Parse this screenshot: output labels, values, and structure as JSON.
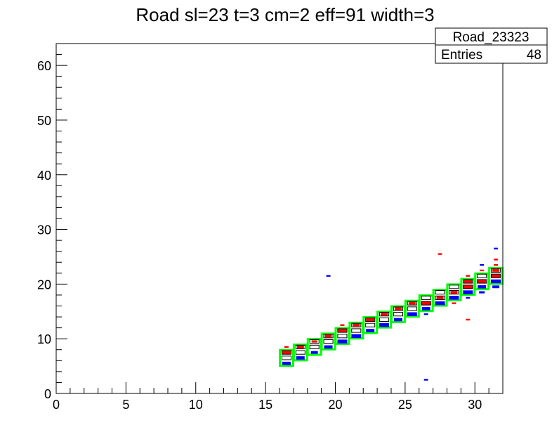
{
  "chart_data": {
    "type": "heatmap",
    "title": "Road sl=23 t=3 cm=2 eff=91 width=3",
    "xlim": [
      0,
      32
    ],
    "ylim": [
      0,
      64
    ],
    "x_ticks": [
      "0",
      "5",
      "10",
      "15",
      "20",
      "25",
      "30"
    ],
    "y_ticks": [
      "0",
      "10",
      "20",
      "30",
      "40",
      "50",
      "60"
    ],
    "x_tick_values": [
      0,
      5,
      10,
      15,
      20,
      25,
      30
    ],
    "y_tick_values": [
      0,
      10,
      20,
      30,
      40,
      50,
      60
    ],
    "grid": false,
    "stats_box": {
      "name": "Road_23323",
      "entries_label": "Entries",
      "entries_value": "48"
    },
    "colors": {
      "road": "#00ff00",
      "layer_a": "#0000ff",
      "layer_b": "#ff0000",
      "box": "#000000"
    },
    "road_cells": [
      {
        "x": 16,
        "y": 5
      },
      {
        "x": 17,
        "y": 6
      },
      {
        "x": 18,
        "y": 7
      },
      {
        "x": 19,
        "y": 8
      },
      {
        "x": 20,
        "y": 9
      },
      {
        "x": 21,
        "y": 10
      },
      {
        "x": 22,
        "y": 11
      },
      {
        "x": 23,
        "y": 12
      },
      {
        "x": 24,
        "y": 13
      },
      {
        "x": 25,
        "y": 14
      },
      {
        "x": 26,
        "y": 15
      },
      {
        "x": 27,
        "y": 16
      },
      {
        "x": 28,
        "y": 17
      },
      {
        "x": 29,
        "y": 18
      },
      {
        "x": 30,
        "y": 19
      },
      {
        "x": 31,
        "y": 20
      }
    ],
    "box_cells": [
      {
        "x": 16,
        "y": 6
      },
      {
        "x": 16,
        "y": 7
      },
      {
        "x": 17,
        "y": 7
      },
      {
        "x": 17,
        "y": 8
      },
      {
        "x": 18,
        "y": 8
      },
      {
        "x": 18,
        "y": 9
      },
      {
        "x": 19,
        "y": 9
      },
      {
        "x": 19,
        "y": 10
      },
      {
        "x": 20,
        "y": 10
      },
      {
        "x": 20,
        "y": 11
      },
      {
        "x": 21,
        "y": 11
      },
      {
        "x": 21,
        "y": 12
      },
      {
        "x": 22,
        "y": 12
      },
      {
        "x": 22,
        "y": 13
      },
      {
        "x": 23,
        "y": 13
      },
      {
        "x": 23,
        "y": 14
      },
      {
        "x": 24,
        "y": 14
      },
      {
        "x": 24,
        "y": 15
      },
      {
        "x": 25,
        "y": 15
      },
      {
        "x": 25,
        "y": 16
      },
      {
        "x": 26,
        "y": 16
      },
      {
        "x": 26,
        "y": 17
      },
      {
        "x": 27,
        "y": 17
      },
      {
        "x": 27,
        "y": 18
      },
      {
        "x": 28,
        "y": 18
      },
      {
        "x": 28,
        "y": 19
      },
      {
        "x": 29,
        "y": 19
      },
      {
        "x": 29,
        "y": 20
      },
      {
        "x": 30,
        "y": 20
      },
      {
        "x": 30,
        "y": 21
      },
      {
        "x": 31,
        "y": 21
      },
      {
        "x": 31,
        "y": 22
      }
    ],
    "blue_bins": [
      {
        "x": 16,
        "y": 5,
        "w": 0.6
      },
      {
        "x": 17,
        "y": 6,
        "w": 0.6
      },
      {
        "x": 18,
        "y": 7,
        "w": 0.5
      },
      {
        "x": 19,
        "y": 8,
        "w": 0.6
      },
      {
        "x": 20,
        "y": 9,
        "w": 0.7
      },
      {
        "x": 21,
        "y": 10,
        "w": 0.7
      },
      {
        "x": 22,
        "y": 11,
        "w": 0.6
      },
      {
        "x": 23,
        "y": 12,
        "w": 0.7
      },
      {
        "x": 24,
        "y": 13,
        "w": 0.6
      },
      {
        "x": 25,
        "y": 14,
        "w": 0.7
      },
      {
        "x": 26,
        "y": 15,
        "w": 0.6
      },
      {
        "x": 27,
        "y": 16,
        "w": 0.7
      },
      {
        "x": 28,
        "y": 17,
        "w": 0.7
      },
      {
        "x": 29,
        "y": 18,
        "w": 0.7
      },
      {
        "x": 30,
        "y": 19,
        "w": 0.6
      },
      {
        "x": 31,
        "y": 20,
        "w": 0.7
      },
      {
        "x": 19,
        "y": 21,
        "w": 0.3
      },
      {
        "x": 26,
        "y": 2,
        "w": 0.3
      },
      {
        "x": 30,
        "y": 23,
        "w": 0.3
      },
      {
        "x": 31,
        "y": 26,
        "w": 0.3
      },
      {
        "x": 29,
        "y": 17,
        "w": 0.3
      },
      {
        "x": 30,
        "y": 18,
        "w": 0.4
      },
      {
        "x": 31,
        "y": 19,
        "w": 0.5
      },
      {
        "x": 26,
        "y": 14,
        "w": 0.3
      }
    ],
    "red_bins": [
      {
        "x": 16,
        "y": 7,
        "w": 0.6
      },
      {
        "x": 17,
        "y": 8,
        "w": 0.5
      },
      {
        "x": 18,
        "y": 9,
        "w": 0.4
      },
      {
        "x": 19,
        "y": 10,
        "w": 0.5
      },
      {
        "x": 20,
        "y": 11,
        "w": 0.6
      },
      {
        "x": 21,
        "y": 12,
        "w": 0.5
      },
      {
        "x": 22,
        "y": 13,
        "w": 0.6
      },
      {
        "x": 23,
        "y": 14,
        "w": 0.5
      },
      {
        "x": 24,
        "y": 15,
        "w": 0.5
      },
      {
        "x": 25,
        "y": 16,
        "w": 0.5
      },
      {
        "x": 26,
        "y": 16,
        "w": 0.7
      },
      {
        "x": 27,
        "y": 17,
        "w": 0.5
      },
      {
        "x": 28,
        "y": 18,
        "w": 0.5
      },
      {
        "x": 29,
        "y": 19,
        "w": 0.7
      },
      {
        "x": 29,
        "y": 20,
        "w": 0.6
      },
      {
        "x": 30,
        "y": 20,
        "w": 0.6
      },
      {
        "x": 31,
        "y": 21,
        "w": 0.6
      },
      {
        "x": 31,
        "y": 22,
        "w": 0.5
      },
      {
        "x": 16,
        "y": 8,
        "w": 0.3
      },
      {
        "x": 20,
        "y": 12,
        "w": 0.3
      },
      {
        "x": 27,
        "y": 25,
        "w": 0.3
      },
      {
        "x": 29,
        "y": 13,
        "w": 0.3
      },
      {
        "x": 29,
        "y": 21,
        "w": 0.3
      },
      {
        "x": 30,
        "y": 22,
        "w": 0.3
      },
      {
        "x": 31,
        "y": 23,
        "w": 0.3
      },
      {
        "x": 31,
        "y": 24,
        "w": 0.3
      },
      {
        "x": 28,
        "y": 16,
        "w": 0.3
      }
    ]
  }
}
